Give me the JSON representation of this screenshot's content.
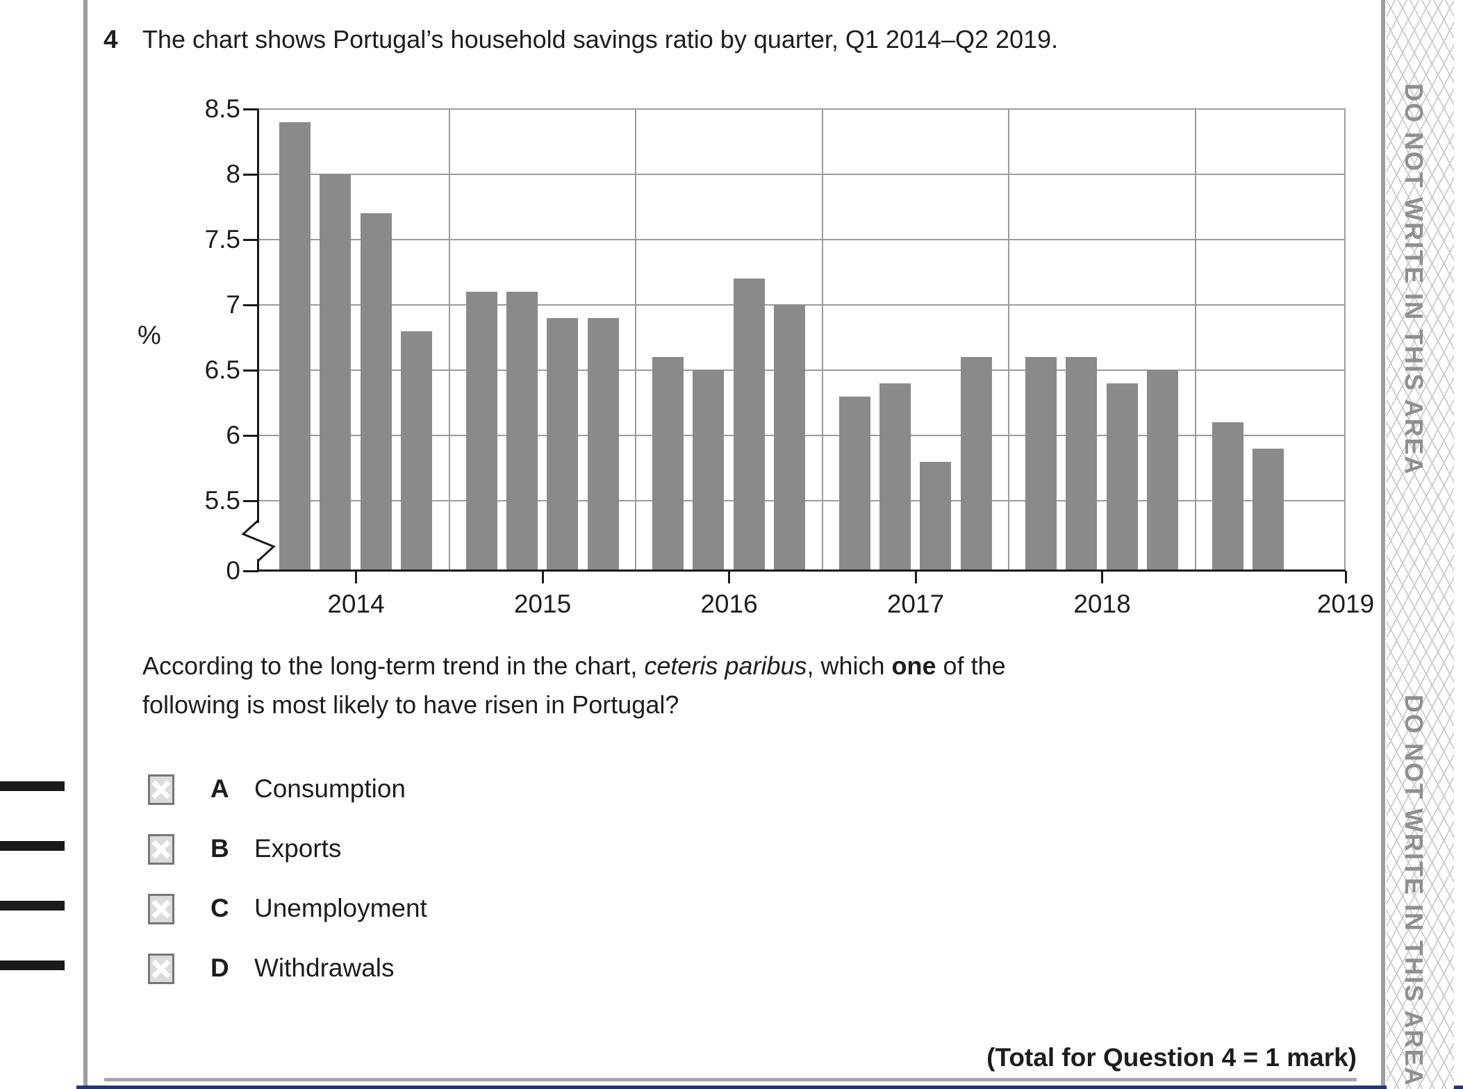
{
  "question": {
    "number": "4",
    "title": "The chart shows Portugal’s household savings ratio by quarter, Q1 2014–Q2 2019.",
    "prompt_lines": [
      [
        {
          "t": "According to the long-term trend in the chart, ",
          "s": "n"
        },
        {
          "t": "ceteris paribus",
          "s": "i"
        },
        {
          "t": ", which ",
          "s": "n"
        },
        {
          "t": "one",
          "s": "b"
        },
        {
          "t": " of the",
          "s": "n"
        }
      ],
      [
        {
          "t": "following is most likely to have risen in Portugal?",
          "s": "n"
        }
      ]
    ],
    "options": [
      {
        "letter": "A",
        "label": "Consumption"
      },
      {
        "letter": "B",
        "label": "Exports"
      },
      {
        "letter": "C",
        "label": "Unemployment"
      },
      {
        "letter": "D",
        "label": "Withdrawals"
      }
    ]
  },
  "footer": {
    "total": "(Total for Question 4 = 1 mark)"
  },
  "side_strip": {
    "text": "DO NOT WRITE IN THIS AREA"
  },
  "chart_data": {
    "type": "bar",
    "title": "Portugal household savings ratio by quarter, Q1 2014–Q2 2019",
    "ylabel": "%",
    "xlabel": "",
    "categories": [
      "Q1 2014",
      "Q2 2014",
      "Q3 2014",
      "Q4 2014",
      "Q1 2015",
      "Q2 2015",
      "Q3 2015",
      "Q4 2015",
      "Q1 2016",
      "Q2 2016",
      "Q3 2016",
      "Q4 2016",
      "Q1 2017",
      "Q2 2017",
      "Q3 2017",
      "Q4 2017",
      "Q1 2018",
      "Q2 2018",
      "Q3 2018",
      "Q4 2018",
      "Q1 2019",
      "Q2 2019"
    ],
    "values": [
      8.4,
      8.0,
      7.7,
      6.8,
      7.1,
      7.1,
      6.9,
      6.9,
      6.6,
      6.5,
      7.2,
      7.0,
      6.3,
      6.4,
      5.8,
      6.6,
      6.6,
      6.6,
      6.4,
      6.5,
      6.1,
      5.9
    ],
    "year_groups": [
      {
        "label": "2014",
        "count": 4
      },
      {
        "label": "2015",
        "count": 4
      },
      {
        "label": "2016",
        "count": 4
      },
      {
        "label": "2017",
        "count": 4
      },
      {
        "label": "2018",
        "count": 4
      },
      {
        "label": "2019",
        "count": 2
      }
    ],
    "y_ticks": [
      8.5,
      8,
      7.5,
      7,
      6.5,
      6,
      5.5,
      0
    ],
    "y_tick_labels": [
      "8.5",
      "8",
      "7.5",
      "7",
      "6.5",
      "6",
      "5.5",
      "0"
    ],
    "ylim": [
      5.5,
      8.5
    ],
    "axis_break": true,
    "grid": true,
    "bar_color": "#8a8a8a"
  }
}
